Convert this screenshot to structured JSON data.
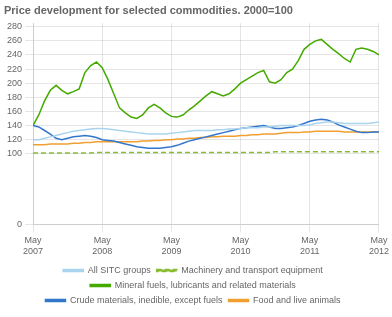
{
  "chart_data": {
    "type": "line",
    "title": "Price development for selected commodities. 2000=100",
    "categories": [
      "May\n2007",
      null,
      null,
      null,
      null,
      null,
      null,
      null,
      null,
      null,
      null,
      null,
      "May\n2008",
      null,
      null,
      null,
      null,
      null,
      null,
      null,
      null,
      null,
      null,
      null,
      "May\n2009",
      null,
      null,
      null,
      null,
      null,
      null,
      null,
      null,
      null,
      null,
      null,
      "May\n2010",
      null,
      null,
      null,
      null,
      null,
      null,
      null,
      null,
      null,
      null,
      null,
      "May\n2011",
      null,
      null,
      null,
      null,
      null,
      null,
      null,
      null,
      null,
      null,
      null,
      "May\n2012"
    ],
    "series": [
      {
        "name": "All SITC groups",
        "color": "#aad4ee",
        "line_style": "solid",
        "values": [
          120,
          120,
          122,
          124,
          126,
          128,
          130,
          132,
          133,
          134,
          135,
          136,
          136,
          135,
          134,
          133,
          132,
          131,
          130,
          129,
          128,
          128,
          128,
          128,
          129,
          130,
          131,
          132,
          133,
          133,
          133,
          133,
          134,
          134,
          135,
          135,
          136,
          137,
          137,
          137,
          138,
          138,
          139,
          140,
          140,
          140,
          140,
          140,
          141,
          143,
          144,
          145,
          145,
          144,
          143,
          143,
          143,
          143,
          143,
          144,
          145
        ]
      },
      {
        "name": "Machinery and transport equipment",
        "color": "#88bb30",
        "line_style": "dashed",
        "values": [
          101,
          101,
          101,
          101,
          101,
          101,
          101,
          101,
          101,
          101,
          101,
          102,
          102,
          102,
          102,
          102,
          102,
          102,
          102,
          102,
          102,
          102,
          102,
          102,
          102,
          102,
          102,
          102,
          102,
          102,
          102,
          102,
          102,
          102,
          102,
          102,
          102,
          102,
          102,
          102,
          102,
          102,
          103,
          103,
          103,
          103,
          103,
          103,
          103,
          103,
          103,
          103,
          103,
          103,
          103,
          103,
          103,
          103,
          103,
          103,
          103
        ]
      },
      {
        "name": "Mineral fuels, lubricants and related materials",
        "color": "#44aa00",
        "line_style": "solid",
        "values": [
          140,
          155,
          175,
          190,
          197,
          190,
          185,
          188,
          192,
          215,
          225,
          230,
          222,
          205,
          185,
          165,
          158,
          152,
          150,
          155,
          165,
          170,
          165,
          158,
          153,
          152,
          155,
          162,
          168,
          175,
          182,
          188,
          185,
          182,
          185,
          192,
          200,
          205,
          210,
          215,
          218,
          202,
          200,
          205,
          215,
          220,
          232,
          248,
          255,
          260,
          262,
          255,
          248,
          242,
          235,
          230,
          248,
          250,
          248,
          245,
          240
        ]
      },
      {
        "name": "Crude materials, inedible, except fuels",
        "color": "#3377cc",
        "line_style": "solid",
        "values": [
          140,
          138,
          133,
          128,
          122,
          120,
          122,
          124,
          125,
          126,
          125,
          123,
          120,
          119,
          118,
          116,
          114,
          112,
          110,
          109,
          108,
          108,
          108,
          109,
          110,
          112,
          115,
          118,
          120,
          122,
          124,
          126,
          128,
          130,
          132,
          134,
          136,
          137,
          138,
          139,
          140,
          138,
          136,
          136,
          137,
          138,
          140,
          143,
          146,
          148,
          149,
          148,
          145,
          141,
          138,
          135,
          132,
          130,
          130,
          131,
          131
        ]
      },
      {
        "name": "Food and live animals",
        "color": "#f0a030",
        "line_style": "solid",
        "values": [
          113,
          113,
          113,
          114,
          114,
          114,
          114,
          115,
          115,
          116,
          116,
          117,
          117,
          117,
          117,
          117,
          117,
          117,
          117,
          118,
          118,
          119,
          119,
          120,
          120,
          121,
          121,
          122,
          122,
          123,
          123,
          124,
          124,
          125,
          125,
          125,
          126,
          126,
          127,
          127,
          128,
          128,
          128,
          129,
          130,
          130,
          130,
          131,
          131,
          132,
          132,
          132,
          132,
          132,
          131,
          131,
          131,
          131,
          131,
          131,
          131
        ]
      }
    ],
    "ylim": [
      0,
      285
    ],
    "yticks": [
      0,
      100,
      120,
      140,
      160,
      180,
      200,
      220,
      240,
      260,
      280
    ],
    "grid": true,
    "legend": "bottom"
  }
}
